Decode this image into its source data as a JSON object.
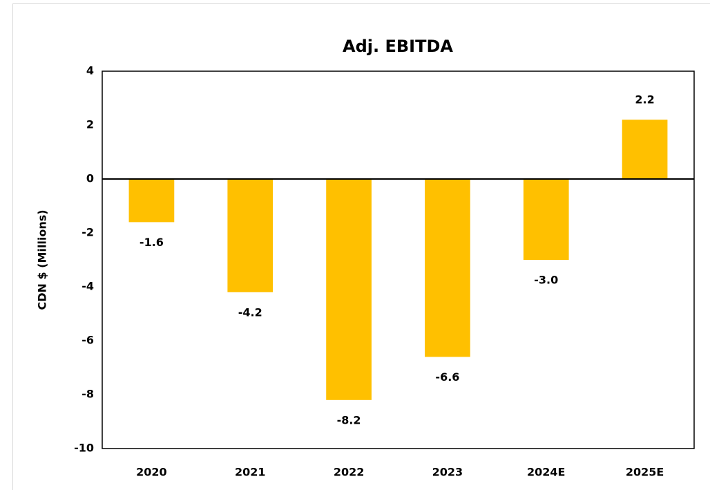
{
  "chart_data": {
    "type": "bar",
    "title": "Adj. EBITDA",
    "y_label": "CDN $ (Millions)",
    "categories": [
      "2020",
      "2021",
      "2022",
      "2023",
      "2024E",
      "2025E"
    ],
    "values": [
      -1.6,
      -4.2,
      -8.2,
      -6.6,
      -3.0,
      2.2
    ],
    "value_labels": [
      "-1.6",
      "-4.2",
      "-8.2",
      "-6.6",
      "-3.0",
      "2.2"
    ],
    "color": "#ffc000",
    "ylim": [
      -10,
      4
    ],
    "yticks": [
      -10,
      -8,
      -6,
      -4,
      -2,
      0,
      2,
      4
    ],
    "grid": false
  }
}
